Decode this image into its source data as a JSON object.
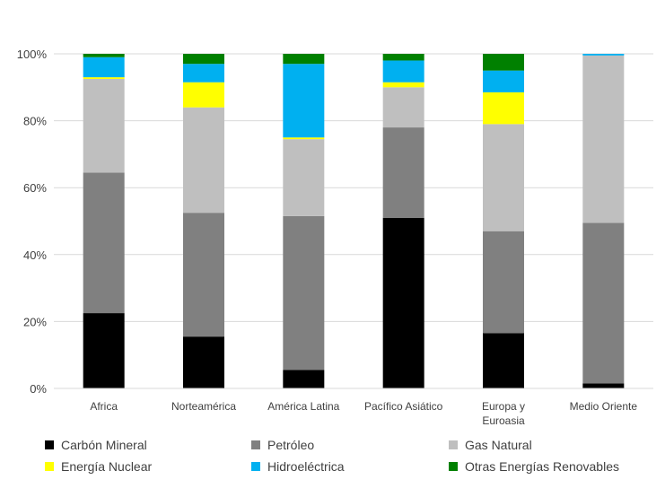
{
  "chart_data": {
    "type": "bar",
    "stacked": true,
    "percent": true,
    "categories": [
      "Africa",
      "Norteamérica",
      "América Latina",
      "Pacífico Asiático",
      "Europa y Euroasia",
      "Medio Oriente"
    ],
    "category_lines": [
      [
        "Africa"
      ],
      [
        "Norteamérica"
      ],
      [
        "América Latina"
      ],
      [
        "Pacífico Asiático"
      ],
      [
        "Europa y",
        "Euroasia"
      ],
      [
        "Medio Oriente"
      ]
    ],
    "series": [
      {
        "name": "Carbón Mineral",
        "color": "#000000",
        "values": [
          22.5,
          15.5,
          5.5,
          51,
          16.5,
          1.5
        ]
      },
      {
        "name": "Petróleo",
        "color": "#808080",
        "values": [
          42,
          37,
          46,
          27,
          30.5,
          48
        ]
      },
      {
        "name": "Gas Natural",
        "color": "#bfbfbf",
        "values": [
          28,
          31.5,
          23,
          12,
          32,
          50
        ]
      },
      {
        "name": "Energía Nuclear",
        "color": "#ffff00",
        "values": [
          0.5,
          7.5,
          0.5,
          1.5,
          9.5,
          0
        ]
      },
      {
        "name": "Hidroeléctrica",
        "color": "#00b0f0",
        "values": [
          6,
          5.5,
          22,
          6.5,
          6.5,
          0.5
        ]
      },
      {
        "name": "Otras Energías Renovables",
        "color": "#008000",
        "values": [
          1,
          3,
          3,
          2,
          5,
          0
        ]
      }
    ],
    "yticks": [
      "0%",
      "20%",
      "40%",
      "60%",
      "80%",
      "100%"
    ],
    "ylim": [
      0,
      100
    ],
    "xlabel": "",
    "ylabel": "",
    "title": "",
    "grid": true,
    "legend_position": "bottom"
  }
}
